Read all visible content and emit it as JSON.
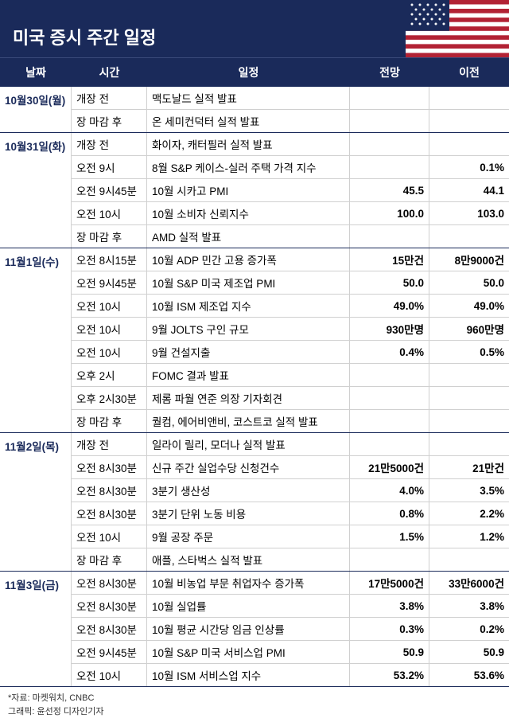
{
  "title": "미국 증시 주간 일정",
  "columns": [
    "날짜",
    "시간",
    "일정",
    "전망",
    "이전"
  ],
  "footer": {
    "source": "*자료: 마켓워치, CNBC",
    "credit": "그래픽: 윤선정 디자인기자"
  },
  "colors": {
    "header_bg": "#1a2a5a",
    "header_text": "#ffffff",
    "date_text": "#1a2a5a",
    "group_border": "#1a2a5a",
    "row_border": "#d0d0d0"
  },
  "fonts": {
    "title_size": 22,
    "header_size": 14,
    "cell_size": 13.5,
    "footer_size": 11
  },
  "flag": {
    "stripe_colors": [
      "#b22234",
      "#ffffff"
    ],
    "canton_color": "#1a2a5a",
    "star_color": "#ffffff"
  },
  "groups": [
    {
      "date": "10월30일(월)",
      "rows": [
        {
          "time": "개장 전",
          "event": "맥도날드 실적 발표",
          "fcst": "",
          "prev": ""
        },
        {
          "time": "장 마감 후",
          "event": "온 세미컨덕터 실적 발표",
          "fcst": "",
          "prev": ""
        }
      ]
    },
    {
      "date": "10월31일(화)",
      "rows": [
        {
          "time": "개장 전",
          "event": "화이자, 캐터필러 실적 발표",
          "fcst": "",
          "prev": ""
        },
        {
          "time": "오전 9시",
          "event": "8월 S&P 케이스-실러 주택 가격 지수",
          "fcst": "",
          "prev": "0.1%"
        },
        {
          "time": "오전 9시45분",
          "event": "10월 시카고 PMI",
          "fcst": "45.5",
          "prev": "44.1"
        },
        {
          "time": "오전 10시",
          "event": "10월 소비자 신뢰지수",
          "fcst": "100.0",
          "prev": "103.0"
        },
        {
          "time": "장 마감 후",
          "event": "AMD 실적 발표",
          "fcst": "",
          "prev": ""
        }
      ]
    },
    {
      "date": "11월1일(수)",
      "rows": [
        {
          "time": "오전 8시15분",
          "event": "10월 ADP 민간 고용 증가폭",
          "fcst": "15만건",
          "prev": "8만9000건"
        },
        {
          "time": "오전 9시45분",
          "event": "10월 S&P 미국 제조업 PMI",
          "fcst": "50.0",
          "prev": "50.0"
        },
        {
          "time": "오전 10시",
          "event": "10월 ISM 제조업 지수",
          "fcst": "49.0%",
          "prev": "49.0%"
        },
        {
          "time": "오전 10시",
          "event": "9월 JOLTS  구인 규모",
          "fcst": "930만명",
          "prev": "960만명"
        },
        {
          "time": "오전 10시",
          "event": "9월 건설지출",
          "fcst": "0.4%",
          "prev": "0.5%"
        },
        {
          "time": "오후 2시",
          "event": "FOMC 결과 발표",
          "fcst": "",
          "prev": ""
        },
        {
          "time": "오후 2시30분",
          "event": "제롬 파월 연준 의장 기자회견",
          "fcst": "",
          "prev": ""
        },
        {
          "time": "장 마감 후",
          "event": "퀄컴, 에어비앤비, 코스트코 실적 발표",
          "fcst": "",
          "prev": ""
        }
      ]
    },
    {
      "date": "11월2일(목)",
      "rows": [
        {
          "time": "개장 전",
          "event": "일라이 릴리, 모더나 실적 발표",
          "fcst": "",
          "prev": ""
        },
        {
          "time": "오전 8시30분",
          "event": "신규 주간 실업수당 신청건수",
          "fcst": "21만5000건",
          "prev": "21만건"
        },
        {
          "time": "오전 8시30분",
          "event": "3분기 생산성",
          "fcst": "4.0%",
          "prev": "3.5%"
        },
        {
          "time": "오전 8시30분",
          "event": "3분기 단위 노동 비용",
          "fcst": "0.8%",
          "prev": "2.2%"
        },
        {
          "time": "오전 10시",
          "event": "9월 공장 주문",
          "fcst": "1.5%",
          "prev": "1.2%"
        },
        {
          "time": "장 마감 후",
          "event": "애플, 스타벅스 실적 발표",
          "fcst": "",
          "prev": ""
        }
      ]
    },
    {
      "date": "11월3일(금)",
      "rows": [
        {
          "time": "오전 8시30분",
          "event": "10월 비농업 부문 취업자수 증가폭",
          "fcst": "17만5000건",
          "prev": "33만6000건"
        },
        {
          "time": "오전 8시30분",
          "event": "10월 실업률",
          "fcst": "3.8%",
          "prev": "3.8%"
        },
        {
          "time": "오전 8시30분",
          "event": "10월 평균 시간당 임금 인상률",
          "fcst": "0.3%",
          "prev": "0.2%"
        },
        {
          "time": "오전 9시45분",
          "event": "10월 S&P 미국 서비스업 PMI",
          "fcst": "50.9",
          "prev": "50.9"
        },
        {
          "time": "오전 10시",
          "event": "10월 ISM 서비스업 지수",
          "fcst": "53.2%",
          "prev": "53.6%"
        }
      ]
    }
  ]
}
